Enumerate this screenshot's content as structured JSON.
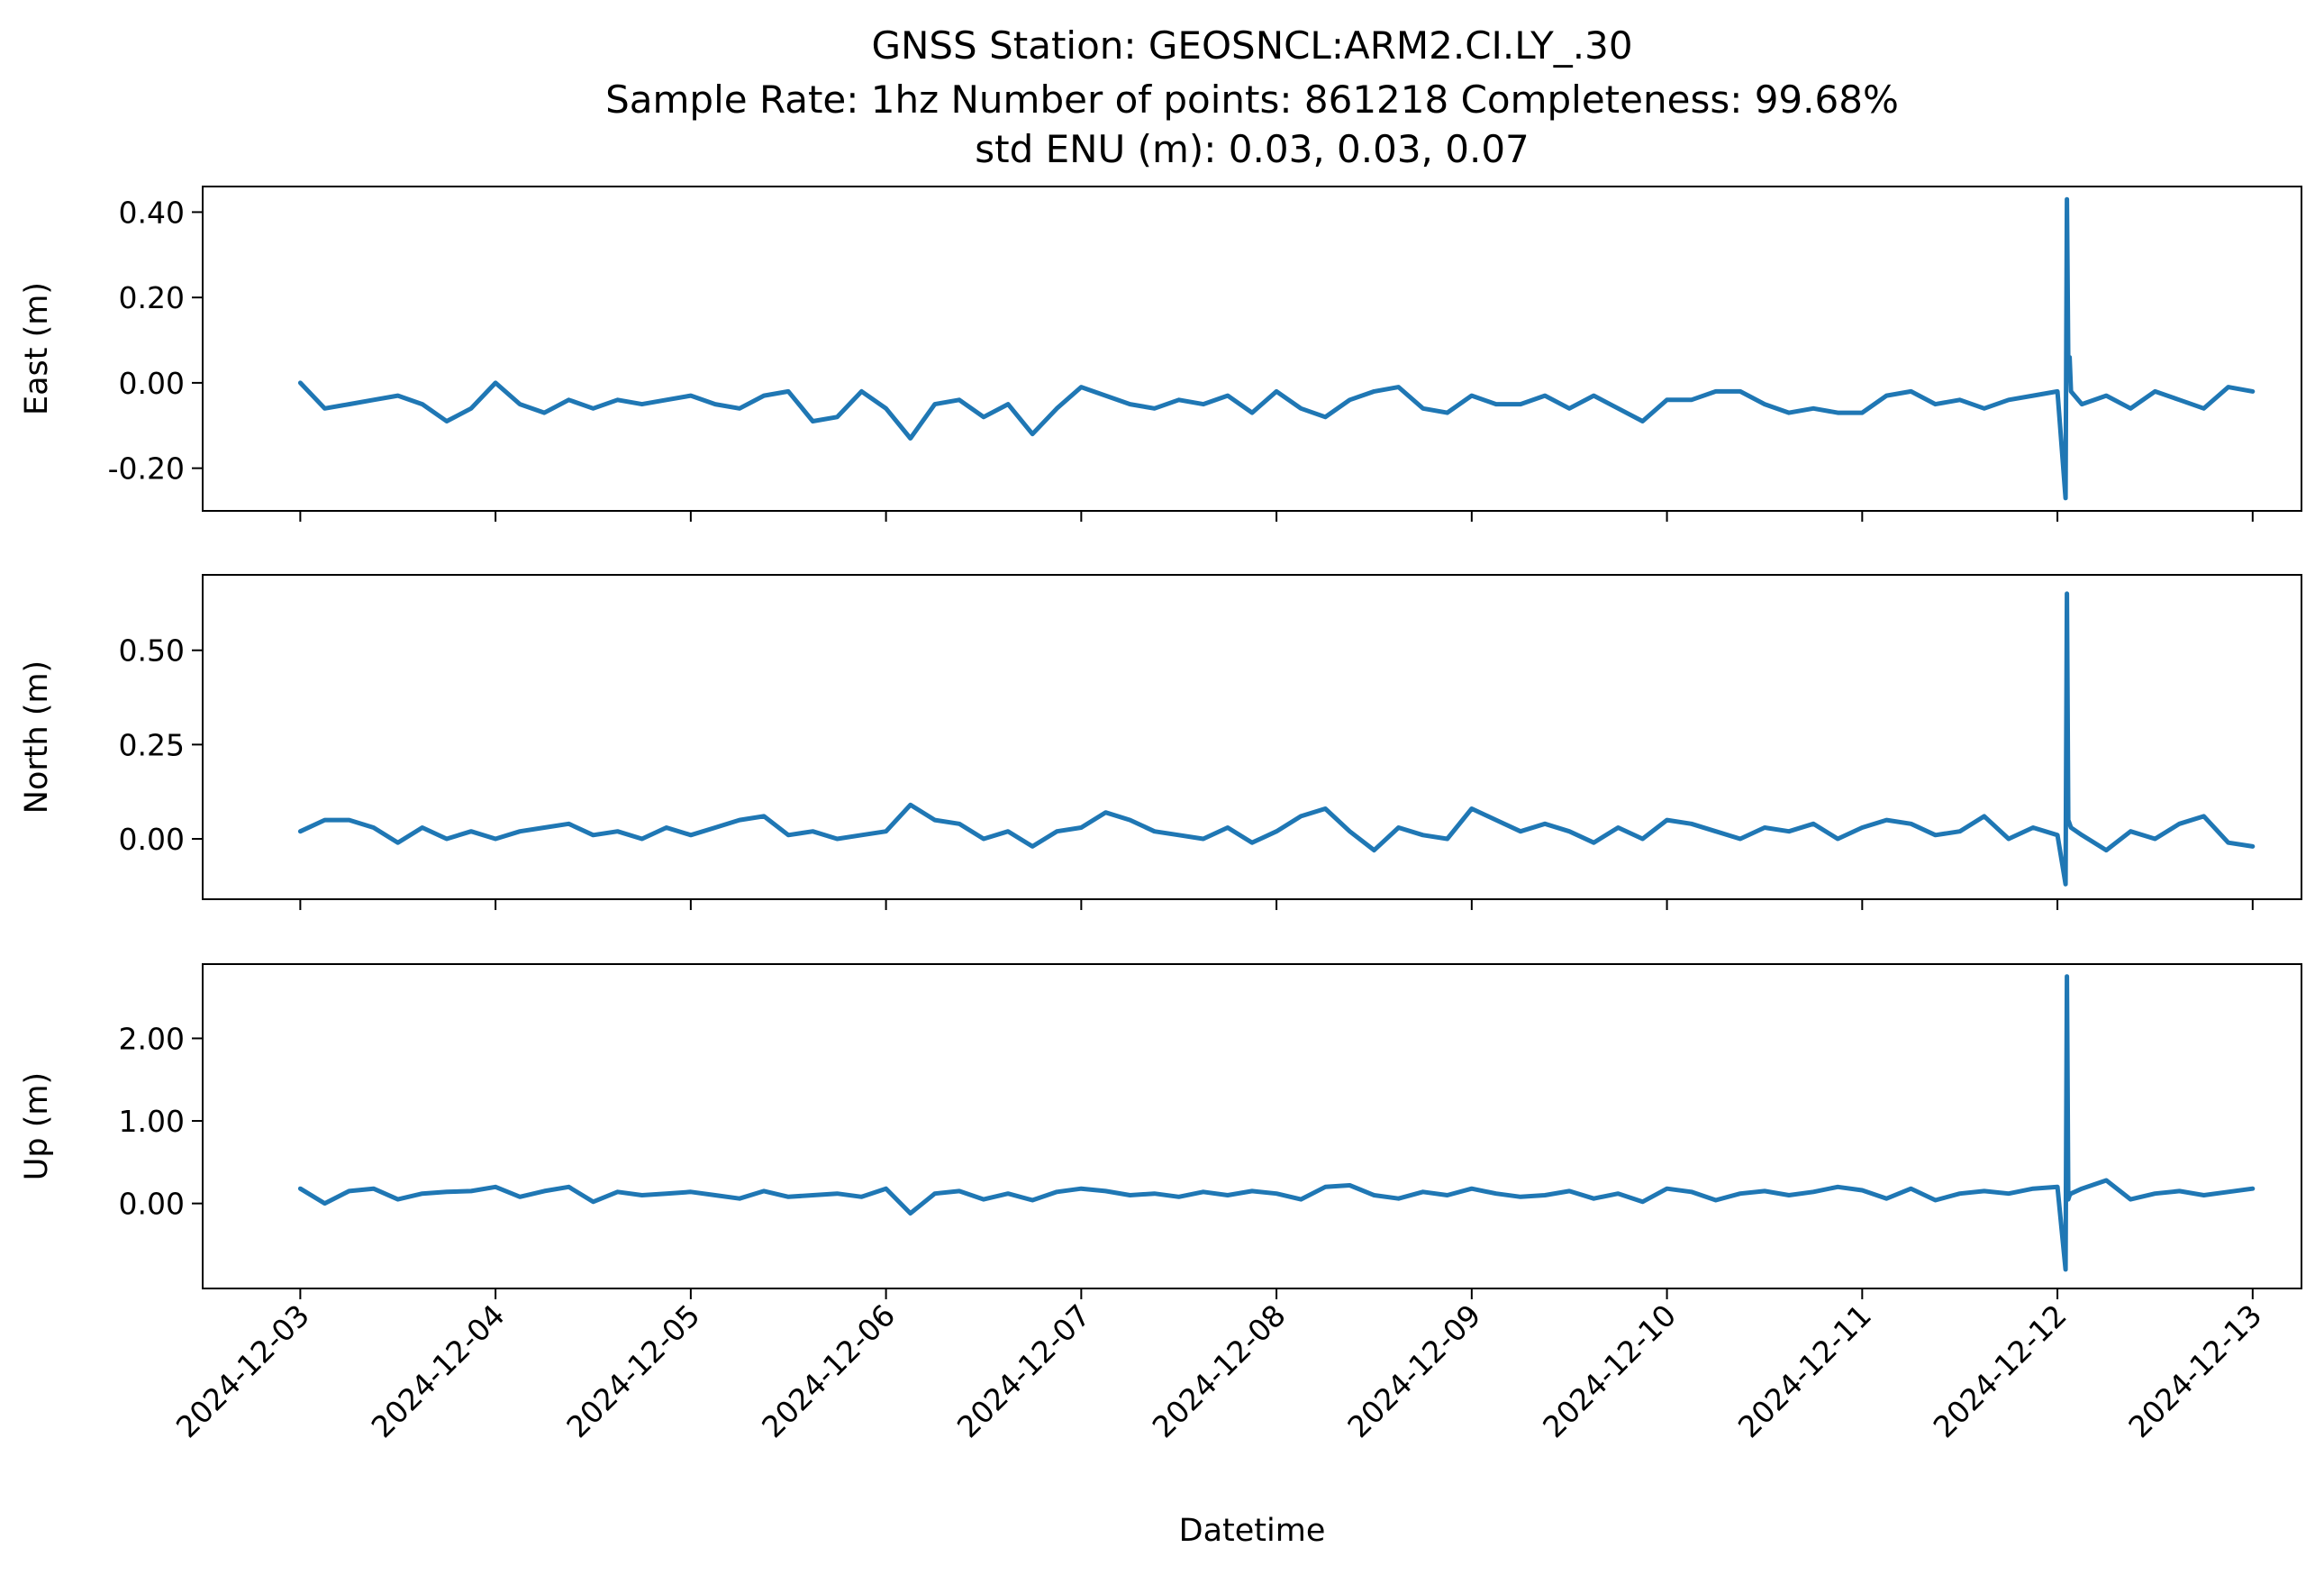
{
  "chart_data": {
    "type": "line",
    "title_lines": [
      "GNSS Station: GEOSNCL:ARM2.CI.LY_.30",
      "Sample Rate: 1hz   Number of points: 861218    Completeness:  99.68%",
      "std ENU (m):  0.03, 0.03, 0.07"
    ],
    "xlabel": "Datetime",
    "x_ticks": [
      "2024-12-03",
      "2024-12-04",
      "2024-12-05",
      "2024-12-06",
      "2024-12-07",
      "2024-12-08",
      "2024-12-09",
      "2024-12-10",
      "2024-12-11",
      "2024-12-12",
      "2024-12-13"
    ],
    "xlim": [
      "2024-12-02 12:00",
      "2024-12-13 06:00"
    ],
    "line_color": "#1f77b4",
    "grid": false,
    "panels": [
      {
        "ylabel": "East (m)",
        "ylim": [
          -0.3,
          0.46
        ],
        "y_ticks": [
          0.4,
          0.2,
          0.0,
          -0.2
        ],
        "y_tick_labels": [
          "0.40",
          "0.20",
          "0.00",
          "-0.20"
        ],
        "series": {
          "x": [
            "2024-12-03 00:00",
            "2024-12-03 03:00",
            "2024-12-03 06:00",
            "2024-12-03 09:00",
            "2024-12-03 12:00",
            "2024-12-03 15:00",
            "2024-12-03 18:00",
            "2024-12-03 21:00",
            "2024-12-04 00:00",
            "2024-12-04 03:00",
            "2024-12-04 06:00",
            "2024-12-04 09:00",
            "2024-12-04 12:00",
            "2024-12-04 15:00",
            "2024-12-04 18:00",
            "2024-12-04 21:00",
            "2024-12-05 00:00",
            "2024-12-05 03:00",
            "2024-12-05 06:00",
            "2024-12-05 09:00",
            "2024-12-05 12:00",
            "2024-12-05 15:00",
            "2024-12-05 18:00",
            "2024-12-05 21:00",
            "2024-12-06 00:00",
            "2024-12-06 03:00",
            "2024-12-06 06:00",
            "2024-12-06 09:00",
            "2024-12-06 12:00",
            "2024-12-06 15:00",
            "2024-12-06 18:00",
            "2024-12-06 21:00",
            "2024-12-07 00:00",
            "2024-12-07 03:00",
            "2024-12-07 06:00",
            "2024-12-07 09:00",
            "2024-12-07 12:00",
            "2024-12-07 15:00",
            "2024-12-07 18:00",
            "2024-12-07 21:00",
            "2024-12-08 00:00",
            "2024-12-08 03:00",
            "2024-12-08 06:00",
            "2024-12-08 09:00",
            "2024-12-08 12:00",
            "2024-12-08 15:00",
            "2024-12-08 18:00",
            "2024-12-08 21:00",
            "2024-12-09 00:00",
            "2024-12-09 03:00",
            "2024-12-09 06:00",
            "2024-12-09 09:00",
            "2024-12-09 12:00",
            "2024-12-09 15:00",
            "2024-12-09 18:00",
            "2024-12-09 21:00",
            "2024-12-10 00:00",
            "2024-12-10 03:00",
            "2024-12-10 06:00",
            "2024-12-10 09:00",
            "2024-12-10 12:00",
            "2024-12-10 15:00",
            "2024-12-10 18:00",
            "2024-12-10 21:00",
            "2024-12-11 00:00",
            "2024-12-11 03:00",
            "2024-12-11 06:00",
            "2024-12-11 09:00",
            "2024-12-11 12:00",
            "2024-12-11 15:00",
            "2024-12-11 18:00",
            "2024-12-11 21:00",
            "2024-12-12 00:00",
            "2024-12-12 01:00",
            "2024-12-12 01:10",
            "2024-12-12 01:20",
            "2024-12-12 01:30",
            "2024-12-12 01:40",
            "2024-12-12 03:00",
            "2024-12-12 06:00",
            "2024-12-12 09:00",
            "2024-12-12 12:00",
            "2024-12-12 15:00",
            "2024-12-12 18:00",
            "2024-12-12 21:00",
            "2024-12-13 00:00"
          ],
          "y": [
            0.0,
            -0.06,
            -0.05,
            -0.04,
            -0.03,
            -0.05,
            -0.09,
            -0.06,
            0.0,
            -0.05,
            -0.07,
            -0.04,
            -0.06,
            -0.04,
            -0.05,
            -0.04,
            -0.03,
            -0.05,
            -0.06,
            -0.03,
            -0.02,
            -0.09,
            -0.08,
            -0.02,
            -0.06,
            -0.13,
            -0.05,
            -0.04,
            -0.08,
            -0.05,
            -0.12,
            -0.06,
            -0.01,
            -0.03,
            -0.05,
            -0.06,
            -0.04,
            -0.05,
            -0.03,
            -0.07,
            -0.02,
            -0.06,
            -0.08,
            -0.04,
            -0.02,
            -0.01,
            -0.06,
            -0.07,
            -0.03,
            -0.05,
            -0.05,
            -0.03,
            -0.06,
            -0.03,
            -0.06,
            -0.09,
            -0.04,
            -0.04,
            -0.02,
            -0.02,
            -0.05,
            -0.07,
            -0.06,
            -0.07,
            -0.07,
            -0.03,
            -0.02,
            -0.05,
            -0.04,
            -0.06,
            -0.04,
            -0.03,
            -0.02,
            -0.27,
            0.43,
            0.05,
            0.06,
            -0.02,
            -0.05,
            -0.03,
            -0.06,
            -0.02,
            -0.04,
            -0.06,
            -0.01,
            -0.02
          ]
        }
      },
      {
        "ylabel": "North (m)",
        "ylim": [
          -0.16,
          0.7
        ],
        "y_ticks": [
          0.5,
          0.25,
          0.0
        ],
        "y_tick_labels": [
          "0.50",
          "0.25",
          "0.00"
        ],
        "series": {
          "x": [
            "2024-12-03 00:00",
            "2024-12-03 03:00",
            "2024-12-03 06:00",
            "2024-12-03 09:00",
            "2024-12-03 12:00",
            "2024-12-03 15:00",
            "2024-12-03 18:00",
            "2024-12-03 21:00",
            "2024-12-04 00:00",
            "2024-12-04 03:00",
            "2024-12-04 06:00",
            "2024-12-04 09:00",
            "2024-12-04 12:00",
            "2024-12-04 15:00",
            "2024-12-04 18:00",
            "2024-12-04 21:00",
            "2024-12-05 00:00",
            "2024-12-05 03:00",
            "2024-12-05 06:00",
            "2024-12-05 09:00",
            "2024-12-05 12:00",
            "2024-12-05 15:00",
            "2024-12-05 18:00",
            "2024-12-05 21:00",
            "2024-12-06 00:00",
            "2024-12-06 03:00",
            "2024-12-06 06:00",
            "2024-12-06 09:00",
            "2024-12-06 12:00",
            "2024-12-06 15:00",
            "2024-12-06 18:00",
            "2024-12-06 21:00",
            "2024-12-07 00:00",
            "2024-12-07 03:00",
            "2024-12-07 06:00",
            "2024-12-07 09:00",
            "2024-12-07 12:00",
            "2024-12-07 15:00",
            "2024-12-07 18:00",
            "2024-12-07 21:00",
            "2024-12-08 00:00",
            "2024-12-08 03:00",
            "2024-12-08 06:00",
            "2024-12-08 09:00",
            "2024-12-08 12:00",
            "2024-12-08 15:00",
            "2024-12-08 18:00",
            "2024-12-08 21:00",
            "2024-12-09 00:00",
            "2024-12-09 03:00",
            "2024-12-09 06:00",
            "2024-12-09 09:00",
            "2024-12-09 12:00",
            "2024-12-09 15:00",
            "2024-12-09 18:00",
            "2024-12-09 21:00",
            "2024-12-10 00:00",
            "2024-12-10 03:00",
            "2024-12-10 06:00",
            "2024-12-10 09:00",
            "2024-12-10 12:00",
            "2024-12-10 15:00",
            "2024-12-10 18:00",
            "2024-12-10 21:00",
            "2024-12-11 00:00",
            "2024-12-11 03:00",
            "2024-12-11 06:00",
            "2024-12-11 09:00",
            "2024-12-11 12:00",
            "2024-12-11 15:00",
            "2024-12-11 18:00",
            "2024-12-11 21:00",
            "2024-12-12 00:00",
            "2024-12-12 01:00",
            "2024-12-12 01:10",
            "2024-12-12 01:20",
            "2024-12-12 01:30",
            "2024-12-12 01:40",
            "2024-12-12 03:00",
            "2024-12-12 06:00",
            "2024-12-12 09:00",
            "2024-12-12 12:00",
            "2024-12-12 15:00",
            "2024-12-12 18:00",
            "2024-12-12 21:00",
            "2024-12-13 00:00"
          ],
          "y": [
            0.02,
            0.05,
            0.05,
            0.03,
            -0.01,
            0.03,
            0.0,
            0.02,
            0.0,
            0.02,
            0.03,
            0.04,
            0.01,
            0.02,
            0.0,
            0.03,
            0.01,
            0.03,
            0.05,
            0.06,
            0.01,
            0.02,
            0.0,
            0.01,
            0.02,
            0.09,
            0.05,
            0.04,
            0.0,
            0.02,
            -0.02,
            0.02,
            0.03,
            0.07,
            0.05,
            0.02,
            0.01,
            0.0,
            0.03,
            -0.01,
            0.02,
            0.06,
            0.08,
            0.02,
            -0.03,
            0.03,
            0.01,
            0.0,
            0.08,
            0.05,
            0.02,
            0.04,
            0.02,
            -0.01,
            0.03,
            0.0,
            0.05,
            0.04,
            0.02,
            0.0,
            0.03,
            0.02,
            0.04,
            0.0,
            0.03,
            0.05,
            0.04,
            0.01,
            0.02,
            0.06,
            0.0,
            0.03,
            0.01,
            -0.12,
            0.65,
            0.05,
            0.04,
            0.03,
            0.01,
            -0.03,
            0.02,
            0.0,
            0.04,
            0.06,
            -0.01,
            -0.02
          ]
        }
      },
      {
        "ylabel": "Up (m)",
        "ylim": [
          -1.03,
          2.9
        ],
        "y_ticks": [
          2.0,
          1.0,
          0.0
        ],
        "y_tick_labels": [
          "2.00",
          "1.00",
          "0.00"
        ],
        "series": {
          "x": [
            "2024-12-03 00:00",
            "2024-12-03 03:00",
            "2024-12-03 06:00",
            "2024-12-03 09:00",
            "2024-12-03 12:00",
            "2024-12-03 15:00",
            "2024-12-03 18:00",
            "2024-12-03 21:00",
            "2024-12-04 00:00",
            "2024-12-04 03:00",
            "2024-12-04 06:00",
            "2024-12-04 09:00",
            "2024-12-04 12:00",
            "2024-12-04 15:00",
            "2024-12-04 18:00",
            "2024-12-04 21:00",
            "2024-12-05 00:00",
            "2024-12-05 03:00",
            "2024-12-05 06:00",
            "2024-12-05 09:00",
            "2024-12-05 12:00",
            "2024-12-05 15:00",
            "2024-12-05 18:00",
            "2024-12-05 21:00",
            "2024-12-06 00:00",
            "2024-12-06 03:00",
            "2024-12-06 06:00",
            "2024-12-06 09:00",
            "2024-12-06 12:00",
            "2024-12-06 15:00",
            "2024-12-06 18:00",
            "2024-12-06 21:00",
            "2024-12-07 00:00",
            "2024-12-07 03:00",
            "2024-12-07 06:00",
            "2024-12-07 09:00",
            "2024-12-07 12:00",
            "2024-12-07 15:00",
            "2024-12-07 18:00",
            "2024-12-07 21:00",
            "2024-12-08 00:00",
            "2024-12-08 03:00",
            "2024-12-08 06:00",
            "2024-12-08 09:00",
            "2024-12-08 12:00",
            "2024-12-08 15:00",
            "2024-12-08 18:00",
            "2024-12-08 21:00",
            "2024-12-09 00:00",
            "2024-12-09 03:00",
            "2024-12-09 06:00",
            "2024-12-09 09:00",
            "2024-12-09 12:00",
            "2024-12-09 15:00",
            "2024-12-09 18:00",
            "2024-12-09 21:00",
            "2024-12-10 00:00",
            "2024-12-10 03:00",
            "2024-12-10 06:00",
            "2024-12-10 09:00",
            "2024-12-10 12:00",
            "2024-12-10 15:00",
            "2024-12-10 18:00",
            "2024-12-10 21:00",
            "2024-12-11 00:00",
            "2024-12-11 03:00",
            "2024-12-11 06:00",
            "2024-12-11 09:00",
            "2024-12-11 12:00",
            "2024-12-11 15:00",
            "2024-12-11 18:00",
            "2024-12-11 21:00",
            "2024-12-12 00:00",
            "2024-12-12 01:00",
            "2024-12-12 01:10",
            "2024-12-12 01:20",
            "2024-12-12 01:30",
            "2024-12-12 01:40",
            "2024-12-12 03:00",
            "2024-12-12 06:00",
            "2024-12-12 09:00",
            "2024-12-12 12:00",
            "2024-12-12 15:00",
            "2024-12-12 18:00",
            "2024-12-12 21:00",
            "2024-12-13 00:00"
          ],
          "y": [
            0.18,
            0.0,
            0.15,
            0.18,
            0.05,
            0.12,
            0.14,
            0.15,
            0.2,
            0.08,
            0.15,
            0.2,
            0.02,
            0.14,
            0.1,
            0.12,
            0.14,
            0.1,
            0.06,
            0.15,
            0.08,
            0.1,
            0.12,
            0.08,
            0.18,
            -0.12,
            0.12,
            0.15,
            0.05,
            0.12,
            0.04,
            0.14,
            0.18,
            0.15,
            0.1,
            0.12,
            0.08,
            0.14,
            0.1,
            0.15,
            0.12,
            0.05,
            0.2,
            0.22,
            0.1,
            0.06,
            0.14,
            0.1,
            0.18,
            0.12,
            0.08,
            0.1,
            0.15,
            0.06,
            0.12,
            0.02,
            0.18,
            0.14,
            0.04,
            0.12,
            0.15,
            0.1,
            0.14,
            0.2,
            0.16,
            0.06,
            0.18,
            0.04,
            0.12,
            0.15,
            0.12,
            0.18,
            0.2,
            -0.8,
            2.75,
            0.05,
            0.1,
            0.12,
            0.18,
            0.28,
            0.05,
            0.12,
            0.15,
            0.1,
            0.14,
            0.18
          ]
        }
      }
    ]
  }
}
